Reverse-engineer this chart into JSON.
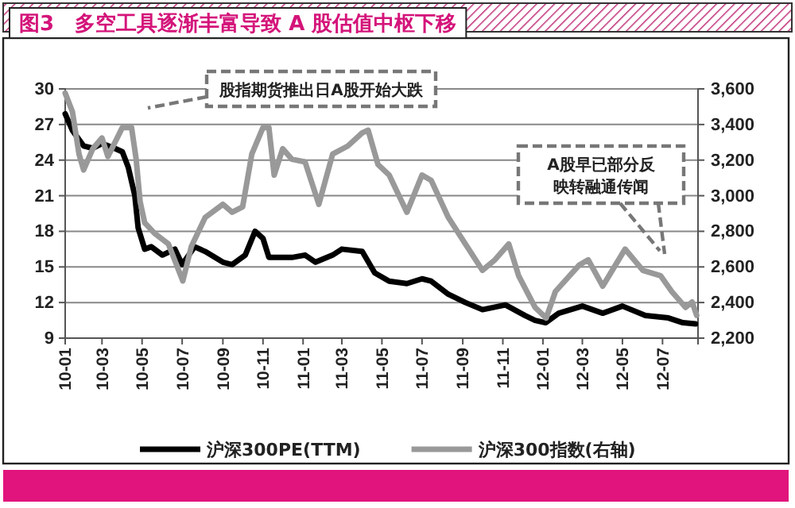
{
  "chart_data": {
    "type": "line",
    "title": "图3　多空工具逐渐丰富导致 A 股估值中枢下移",
    "xlim": [
      "2010-01-04",
      "2012-08-24"
    ],
    "xticks": [
      {
        "value": "2010-01-04",
        "label": "10-01"
      },
      {
        "value": "2010-03-01",
        "label": "10-03"
      },
      {
        "value": "2010-05-01",
        "label": "10-05"
      },
      {
        "value": "2010-07-01",
        "label": "10-07"
      },
      {
        "value": "2010-09-01",
        "label": "10-09"
      },
      {
        "value": "2010-11-01",
        "label": "10-11"
      },
      {
        "value": "2011-01-01",
        "label": "11-01"
      },
      {
        "value": "2011-03-01",
        "label": "11-03"
      },
      {
        "value": "2011-05-01",
        "label": "11-05"
      },
      {
        "value": "2011-07-01",
        "label": "11-07"
      },
      {
        "value": "2011-09-01",
        "label": "11-09"
      },
      {
        "value": "2011-11-01",
        "label": "11-11"
      },
      {
        "value": "2012-01-01",
        "label": "12-01"
      },
      {
        "value": "2012-03-01",
        "label": "12-03"
      },
      {
        "value": "2012-05-01",
        "label": "12-05"
      },
      {
        "value": "2012-07-01",
        "label": "12-07"
      }
    ],
    "ylim": [
      9,
      30
    ],
    "yticks": [
      9,
      12,
      15,
      18,
      21,
      24,
      27,
      30
    ],
    "y2lim": [
      2200,
      3600
    ],
    "y2ticks": [
      {
        "value": 2200,
        "label": "2,200"
      },
      {
        "value": 2400,
        "label": "2,400"
      },
      {
        "value": 2600,
        "label": "2,600"
      },
      {
        "value": 2800,
        "label": "2,800"
      },
      {
        "value": 3000,
        "label": "3,000"
      },
      {
        "value": 3200,
        "label": "3,200"
      },
      {
        "value": 3400,
        "label": "3,400"
      },
      {
        "value": 3600,
        "label": "3,600"
      }
    ],
    "grid": "y",
    "legend": "bottom",
    "line_style": "solid",
    "marker": "none",
    "annotations": [
      "股指期货推出日A股开始大跌",
      "A股早已部分反映转融通传闻"
    ],
    "series": [
      {
        "name": "沪深300PE(TTM)",
        "color": "#000000",
        "x": [
          "2010-01-04",
          "2010-01-15",
          "2010-02-01",
          "2010-02-15",
          "2010-03-01",
          "2010-03-20",
          "2010-04-01",
          "2010-04-10",
          "2010-04-20",
          "2010-04-25",
          "2010-05-05",
          "2010-05-15",
          "2010-06-01",
          "2010-06-20",
          "2010-07-01",
          "2010-07-20",
          "2010-08-05",
          "2010-09-01",
          "2010-09-15",
          "2010-10-05",
          "2010-10-20",
          "2010-11-01",
          "2010-11-10",
          "2010-12-15",
          "2011-01-04",
          "2011-01-20",
          "2011-02-15",
          "2011-03-01",
          "2011-04-01",
          "2011-04-20",
          "2011-05-12",
          "2011-06-08",
          "2011-07-01",
          "2011-07-15",
          "2011-08-10",
          "2011-09-05",
          "2011-10-01",
          "2011-11-05",
          "2011-12-05",
          "2011-12-20",
          "2012-01-05",
          "2012-01-25",
          "2012-03-01",
          "2012-04-01",
          "2012-05-01",
          "2012-06-05",
          "2012-07-10",
          "2012-08-01",
          "2012-08-20"
        ],
        "values": [
          27.9,
          26.5,
          25.2,
          25.0,
          25.4,
          25.0,
          24.7,
          23.4,
          21,
          18.3,
          16.5,
          16.7,
          16.0,
          16.5,
          15.2,
          16.7,
          16.3,
          15.4,
          15.2,
          16.0,
          18.0,
          17.4,
          15.8,
          15.8,
          16.0,
          15.4,
          16.0,
          16.5,
          16.3,
          14.5,
          13.8,
          13.6,
          14.0,
          13.8,
          12.7,
          12.0,
          11.4,
          11.8,
          10.9,
          10.5,
          10.3,
          11.1,
          11.7,
          11.1,
          11.7,
          10.9,
          10.7,
          10.3,
          10.2
        ]
      },
      {
        "name": "沪深300指数(右轴)",
        "color": "#999999",
        "axis": "y2",
        "x": [
          "2010-01-04",
          "2010-01-15",
          "2010-01-25",
          "2010-02-01",
          "2010-02-15",
          "2010-03-01",
          "2010-03-10",
          "2010-04-01",
          "2010-04-15",
          "2010-04-22",
          "2010-04-28",
          "2010-05-05",
          "2010-05-20",
          "2010-06-10",
          "2010-07-02",
          "2010-07-15",
          "2010-08-05",
          "2010-09-01",
          "2010-09-15",
          "2010-10-01",
          "2010-10-15",
          "2010-11-01",
          "2010-11-10",
          "2010-11-18",
          "2010-12-01",
          "2010-12-15",
          "2011-01-04",
          "2011-01-25",
          "2011-02-15",
          "2011-03-10",
          "2011-04-01",
          "2011-04-10",
          "2011-04-25",
          "2011-05-12",
          "2011-06-08",
          "2011-07-01",
          "2011-07-15",
          "2011-08-10",
          "2011-09-05",
          "2011-10-01",
          "2011-10-20",
          "2011-11-10",
          "2011-11-25",
          "2011-12-20",
          "2012-01-06",
          "2012-01-20",
          "2012-02-25",
          "2012-03-10",
          "2012-04-01",
          "2012-05-05",
          "2012-06-01",
          "2012-06-28",
          "2012-07-15",
          "2012-08-05",
          "2012-08-15",
          "2012-08-22"
        ],
        "values": [
          3576,
          3472,
          3234,
          3145,
          3264,
          3324,
          3220,
          3383,
          3383,
          3205,
          2967,
          2848,
          2789,
          2729,
          2521,
          2715,
          2878,
          2952,
          2907,
          2937,
          3234,
          3383,
          3383,
          3116,
          3264,
          3205,
          3190,
          2952,
          3234,
          3279,
          3353,
          3368,
          3175,
          3116,
          2907,
          3116,
          3086,
          2878,
          2729,
          2581,
          2640,
          2729,
          2551,
          2373,
          2313,
          2462,
          2610,
          2640,
          2492,
          2700,
          2581,
          2551,
          2462,
          2373,
          2403,
          2328
        ]
      }
    ]
  }
}
